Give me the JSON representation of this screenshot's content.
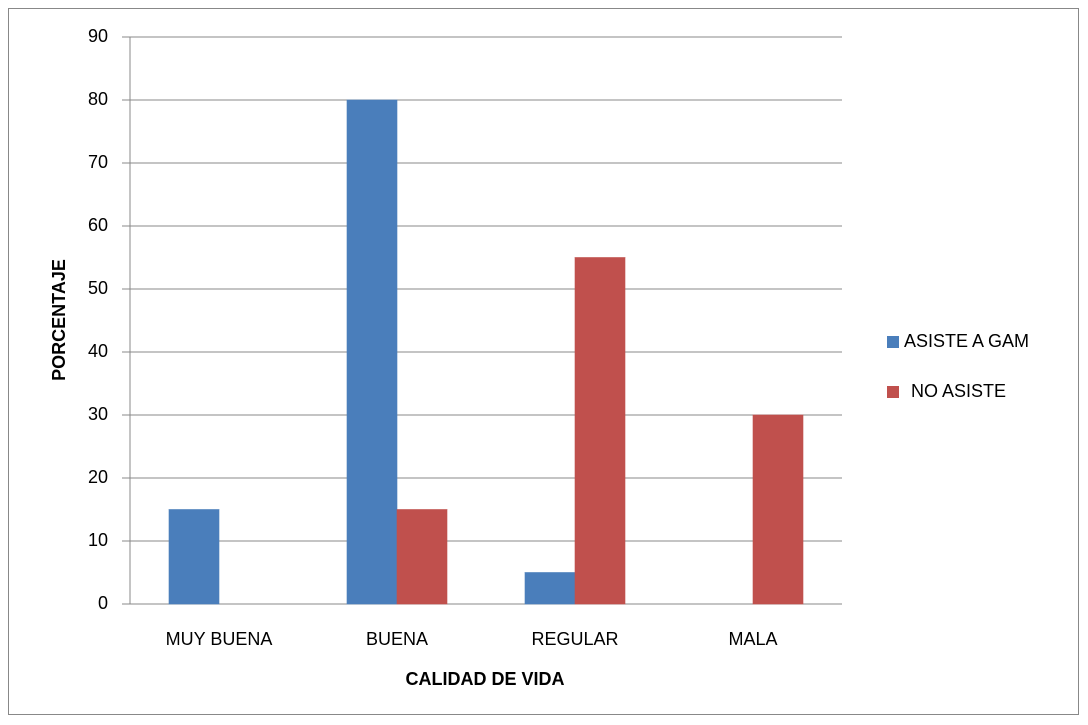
{
  "chart_data": {
    "type": "bar",
    "xlabel": "CALIDAD DE VIDA",
    "ylabel": "PORCENTAJE",
    "categories": [
      "MUY BUENA",
      "BUENA",
      "REGULAR",
      "MALA"
    ],
    "series": [
      {
        "name": "ASISTE A GAM",
        "color": "#4a7ebb",
        "values": [
          15,
          80,
          5,
          0
        ]
      },
      {
        "name": "NO ASISTE",
        "color": "#c0504d",
        "values": [
          0,
          15,
          55,
          30
        ]
      }
    ],
    "ylim": [
      0,
      90
    ],
    "yticks": [
      0,
      10,
      20,
      30,
      40,
      50,
      60,
      70,
      80,
      90
    ],
    "grid": true,
    "legend": "right"
  }
}
